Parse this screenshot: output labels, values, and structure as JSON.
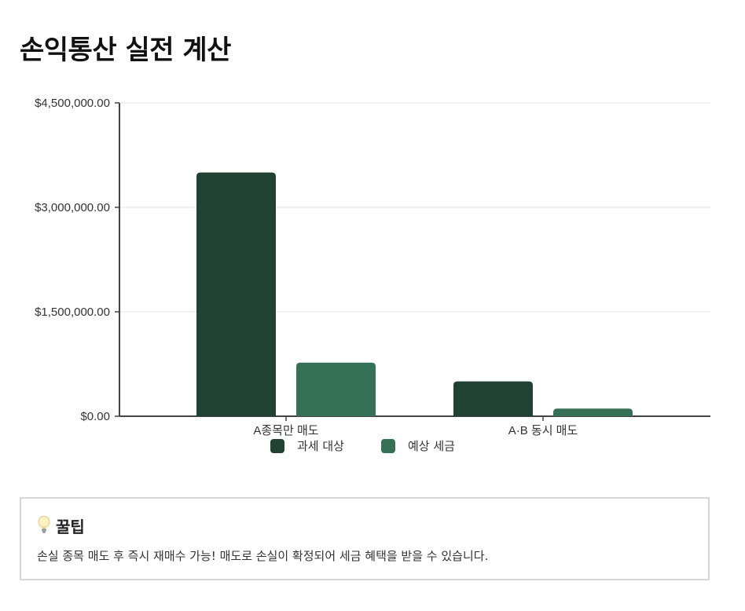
{
  "page": {
    "title": "손익통산 실전 계산"
  },
  "chart_data": {
    "type": "bar",
    "categories": [
      "A종목만 매도",
      "A·B 동시 매도"
    ],
    "series": [
      {
        "name": "과세 대상",
        "values": [
          3500000,
          500000
        ],
        "color": "#1f4232"
      },
      {
        "name": "예상 세금",
        "values": [
          770000,
          110000
        ],
        "color": "#357157"
      }
    ],
    "ylim": [
      0,
      4500000
    ],
    "yticks": [
      "$0.00",
      "$1,500,000.00",
      "$3,000,000.00",
      "$4,500,000.00"
    ],
    "ytick_values": [
      0,
      1500000,
      3000000,
      4500000
    ],
    "grid": true,
    "legend": "bottom-center",
    "xlabel": "",
    "ylabel": ""
  },
  "tip": {
    "icon": "lightbulb-icon",
    "title": "꿀팁",
    "body": "손실 종목 매도 후 즉시 재매수 가능! 매도로 손실이 확정되어 세금 혜택을 받을 수 있습니다."
  }
}
